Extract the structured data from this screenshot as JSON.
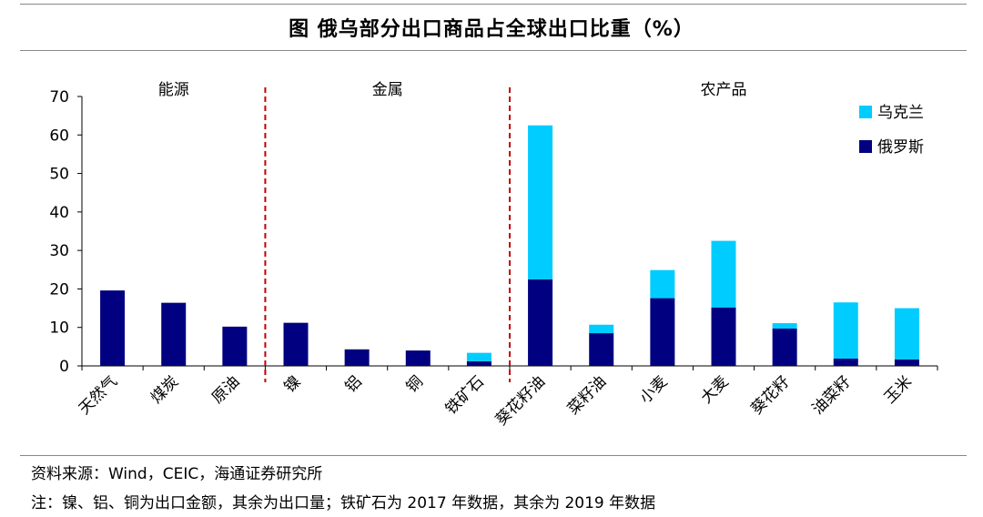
{
  "title": "图  俄乌部分出口商品占全球出口比重（%）",
  "source": "资料来源：Wind，CEIC，海通证券研究所",
  "footnote": "注：镍、铝、铜为出口金额，其余为出口量；铁矿石为 2017 年数据，其余为 2019 年数据",
  "chart_data": {
    "type": "bar",
    "stacked": true,
    "categories": [
      "天然气",
      "煤炭",
      "原油",
      "镍",
      "铝",
      "铜",
      "铁矿石",
      "葵花籽油",
      "菜籽油",
      "小麦",
      "大麦",
      "葵花籽",
      "油菜籽",
      "玉米"
    ],
    "groups": [
      {
        "label": "能源",
        "categories": [
          "天然气",
          "煤炭",
          "原油"
        ]
      },
      {
        "label": "金属",
        "categories": [
          "镍",
          "铝",
          "铜",
          "铁矿石"
        ]
      },
      {
        "label": "农产品",
        "categories": [
          "葵花籽油",
          "菜籽油",
          "小麦",
          "大麦",
          "葵花籽",
          "油菜籽",
          "玉米"
        ]
      }
    ],
    "series": [
      {
        "name": "俄罗斯",
        "color": "#000080",
        "values": [
          19.6,
          16.4,
          10.2,
          11.2,
          4.3,
          4.0,
          1.2,
          22.5,
          8.5,
          17.6,
          15.2,
          9.7,
          1.9,
          1.7
        ]
      },
      {
        "name": "乌克兰",
        "color": "#00CCFF",
        "values": [
          0,
          0,
          0,
          0,
          0,
          0,
          2.2,
          40.0,
          2.2,
          7.3,
          17.3,
          1.4,
          14.6,
          13.3
        ]
      }
    ],
    "ylim": [
      0,
      70
    ],
    "yticks": [
      0,
      10,
      20,
      30,
      40,
      50,
      60,
      70
    ],
    "grid": false,
    "legend": "top-right",
    "divider_color": "#C00000"
  }
}
